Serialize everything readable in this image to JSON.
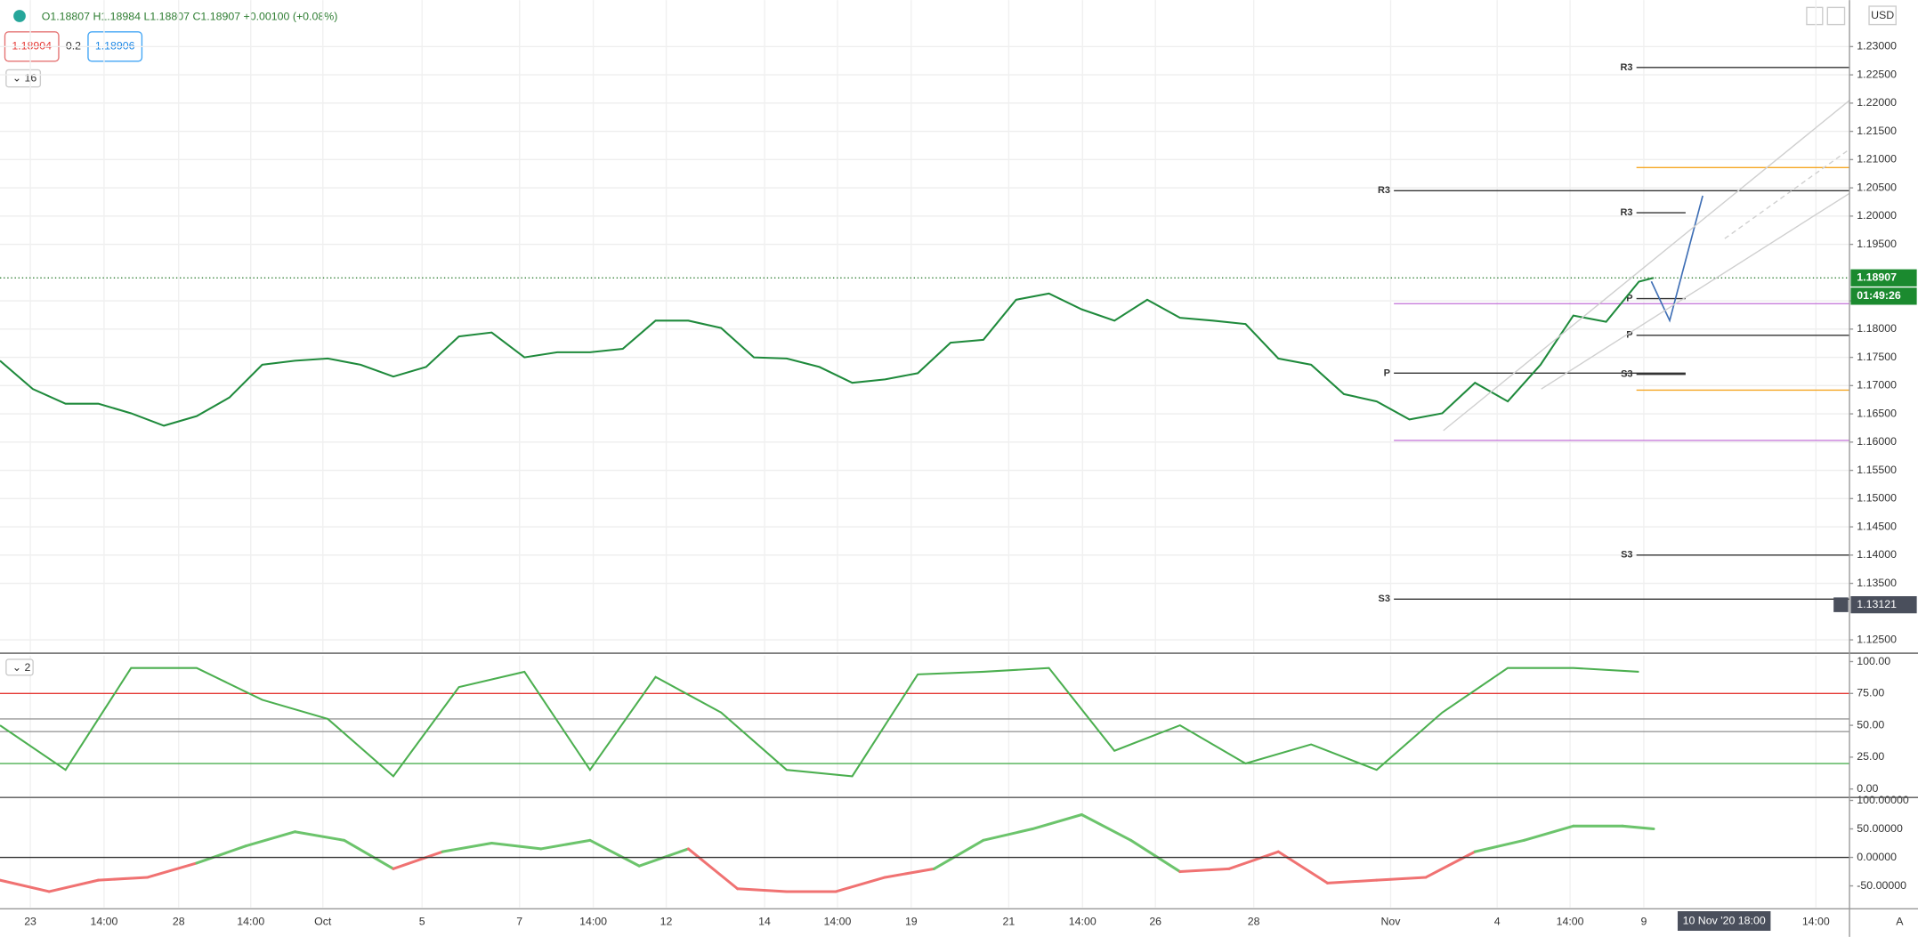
{
  "header": {
    "ohlc": "O1.18807 H1.18984 L1.18807 C1.18907 +0.00100 (+0.08%)",
    "sell": "1.18904",
    "spread": "0.2",
    "buy": "1.18906",
    "indicators": "16",
    "currency": "USD"
  },
  "chart_data": [
    {
      "type": "line",
      "color": "#1f8a3c",
      "xlim": [
        0,
        225.7
      ],
      "ylim": [
        1.12286,
        1.23823
      ],
      "grid": true,
      "yticks": [
        {
          "value": 1.23,
          "label": "1.23000"
        },
        {
          "value": 1.225,
          "label": "1.22500"
        },
        {
          "value": 1.22,
          "label": "1.22000"
        },
        {
          "value": 1.215,
          "label": "1.21500"
        },
        {
          "value": 1.21,
          "label": "1.21000"
        },
        {
          "value": 1.205,
          "label": "1.20500"
        },
        {
          "value": 1.2,
          "label": "1.20000"
        },
        {
          "value": 1.195,
          "label": "1.19500"
        },
        {
          "value": 1.185,
          "label": "1.18500"
        },
        {
          "value": 1.18,
          "label": "1.18000"
        },
        {
          "value": 1.175,
          "label": "1.17500"
        },
        {
          "value": 1.17,
          "label": "1.17000"
        },
        {
          "value": 1.165,
          "label": "1.16500"
        },
        {
          "value": 1.16,
          "label": "1.16000"
        },
        {
          "value": 1.155,
          "label": "1.15500"
        },
        {
          "value": 1.15,
          "label": "1.15000"
        },
        {
          "value": 1.145,
          "label": "1.14500"
        },
        {
          "value": 1.14,
          "label": "1.14000"
        },
        {
          "value": 1.135,
          "label": "1.13500"
        },
        {
          "value": 1.125,
          "label": "1.12500"
        }
      ],
      "xticks": [
        {
          "value": 3.7,
          "label": "23"
        },
        {
          "value": 12.7,
          "label": "14:00"
        },
        {
          "value": 21.8,
          "label": "28"
        },
        {
          "value": 30.6,
          "label": "14:00"
        },
        {
          "value": 39.4,
          "label": "Oct"
        },
        {
          "value": 51.5,
          "label": "5"
        },
        {
          "value": 63.4,
          "label": "7"
        },
        {
          "value": 72.4,
          "label": "14:00"
        },
        {
          "value": 81.3,
          "label": "12"
        },
        {
          "value": 93.3,
          "label": "14"
        },
        {
          "value": 102.2,
          "label": "14:00"
        },
        {
          "value": 111.2,
          "label": "19"
        },
        {
          "value": 123.1,
          "label": "21"
        },
        {
          "value": 132.1,
          "label": "14:00"
        },
        {
          "value": 141,
          "label": "26"
        },
        {
          "value": 153,
          "label": "28"
        },
        {
          "value": 169.7,
          "label": "Nov"
        },
        {
          "value": 182.7,
          "label": "4"
        },
        {
          "value": 191.6,
          "label": "14:00"
        },
        {
          "value": 200.6,
          "label": "9"
        },
        {
          "value": 221.6,
          "label": "14:00"
        }
      ],
      "crosshair_time": {
        "value": 210.4,
        "label": "10 Nov '20  18:00"
      },
      "x": [
        0,
        4,
        8,
        12,
        16,
        20,
        24,
        28,
        32,
        36,
        40,
        44,
        48,
        52,
        56,
        60,
        64,
        68,
        72,
        76,
        80,
        84,
        88,
        92,
        96,
        100,
        104,
        108,
        112,
        116,
        120,
        124,
        128,
        132,
        136,
        140,
        144,
        148,
        152,
        156,
        160,
        164,
        168,
        172,
        176,
        180,
        184,
        188,
        192,
        196,
        200,
        201.8
      ],
      "values": [
        1.1744,
        1.1694,
        1.1668,
        1.1668,
        1.1651,
        1.1629,
        1.1646,
        1.1679,
        1.1737,
        1.1744,
        1.1748,
        1.1737,
        1.1716,
        1.1733,
        1.1787,
        1.1794,
        1.175,
        1.1759,
        1.1759,
        1.1765,
        1.1815,
        1.1815,
        1.1802,
        1.175,
        1.1748,
        1.1733,
        1.1705,
        1.1711,
        1.1722,
        1.1776,
        1.1781,
        1.1852,
        1.1863,
        1.1835,
        1.1815,
        1.1852,
        1.182,
        1.1815,
        1.1809,
        1.1748,
        1.1737,
        1.1685,
        1.1672,
        1.164,
        1.1651,
        1.1705,
        1.1672,
        1.1737,
        1.1824,
        1.1813,
        1.1884,
        1.18907
      ],
      "levels": [
        {
          "label": "R3",
          "value": 1.2263,
          "x0": 199.7,
          "x1": 225.7,
          "color": "#333333"
        },
        {
          "label": "R3",
          "value": 1.2045,
          "x0": 170.1,
          "x1": 225.7,
          "color": "#333333"
        },
        {
          "label": "R3",
          "value": 1.2006,
          "x0": 199.7,
          "x1": 205.7,
          "color": "#333333"
        },
        {
          "label": "P",
          "value": 1.1854,
          "x0": 199.7,
          "x1": 205.7,
          "color": "#333333"
        },
        {
          "label": "P",
          "value": 1.1789,
          "x0": 199.7,
          "x1": 225.7,
          "color": "#333333"
        },
        {
          "label": "P",
          "value": 1.1722,
          "x0": 170.1,
          "x1": 205.7,
          "color": "#333333"
        },
        {
          "label": "S3",
          "value": 1.172,
          "x0": 199.7,
          "x1": 205.7,
          "color": "#333333"
        },
        {
          "label": "S3",
          "value": 1.14,
          "x0": 199.7,
          "x1": 225.7,
          "color": "#333333"
        },
        {
          "label": "S3",
          "value": 1.1322,
          "x0": 170.1,
          "x1": 225.7,
          "color": "#333333"
        },
        {
          "value": 1.2086,
          "x0": 199.7,
          "x1": 225.7,
          "color": "#f5a623"
        },
        {
          "value": 1.1692,
          "x0": 199.7,
          "x1": 225.7,
          "color": "#f5a623"
        },
        {
          "value": 1.1845,
          "x0": 170.1,
          "x1": 225.7,
          "color": "#c77ddb"
        },
        {
          "value": 1.1603,
          "x0": 170.1,
          "x1": 225.7,
          "color": "#c77ddb"
        }
      ],
      "last_price": 1.18907,
      "countdown": "01:49:26",
      "crosshair_price": 1.13121
    },
    {
      "type": "line",
      "pane_label": "2",
      "color": "#4caf50",
      "xlim": [
        0,
        225.7
      ],
      "ylim": [
        -5.7,
        104.7
      ],
      "yticks": [
        {
          "value": 100,
          "label": "100.00"
        },
        {
          "value": 75,
          "label": "75.00"
        },
        {
          "value": 50,
          "label": "50.00"
        },
        {
          "value": 25,
          "label": "25.00"
        },
        {
          "value": 0,
          "label": "0.00"
        }
      ],
      "hlines": [
        {
          "value": 75,
          "color": "#e53935"
        },
        {
          "value": 55,
          "color": "#999999"
        },
        {
          "value": 45,
          "color": "#999999"
        },
        {
          "value": 20,
          "color": "#4caf50"
        }
      ],
      "x": [
        0,
        8,
        16,
        24,
        32,
        40,
        48,
        56,
        64,
        72,
        80,
        88,
        96,
        104,
        112,
        120,
        128,
        136,
        144,
        152,
        160,
        168,
        176,
        184,
        192,
        200
      ],
      "values": [
        50,
        15,
        95,
        95,
        70,
        55,
        10,
        80,
        92,
        15,
        88,
        60,
        15,
        10,
        90,
        92,
        95,
        30,
        50,
        20,
        35,
        15,
        60,
        95,
        95,
        92
      ]
    },
    {
      "type": "line",
      "color": "#6cc46c",
      "negative_color": "#f07272",
      "xlim": [
        0,
        225.7
      ],
      "ylim": [
        -88,
        103
      ],
      "yticks": [
        {
          "value": 100,
          "label": "100.00000"
        },
        {
          "value": 50,
          "label": "50.00000"
        },
        {
          "value": 0,
          "label": "0.00000"
        },
        {
          "value": -50,
          "label": "-50.00000"
        }
      ],
      "x": [
        0,
        6,
        12,
        18,
        24,
        30,
        36,
        42,
        48,
        54,
        60,
        66,
        72,
        78,
        84,
        90,
        96,
        102,
        108,
        114,
        120,
        126,
        132,
        138,
        144,
        150,
        156,
        162,
        168,
        174,
        180,
        186,
        192,
        198,
        201.8
      ],
      "values": [
        -40,
        -60,
        -40,
        -35,
        -10,
        20,
        45,
        30,
        -20,
        10,
        25,
        15,
        30,
        -15,
        15,
        -55,
        -60,
        -60,
        -35,
        -20,
        30,
        50,
        75,
        30,
        -25,
        -20,
        10,
        -45,
        -40,
        -35,
        10,
        30,
        55,
        55,
        50
      ]
    }
  ]
}
